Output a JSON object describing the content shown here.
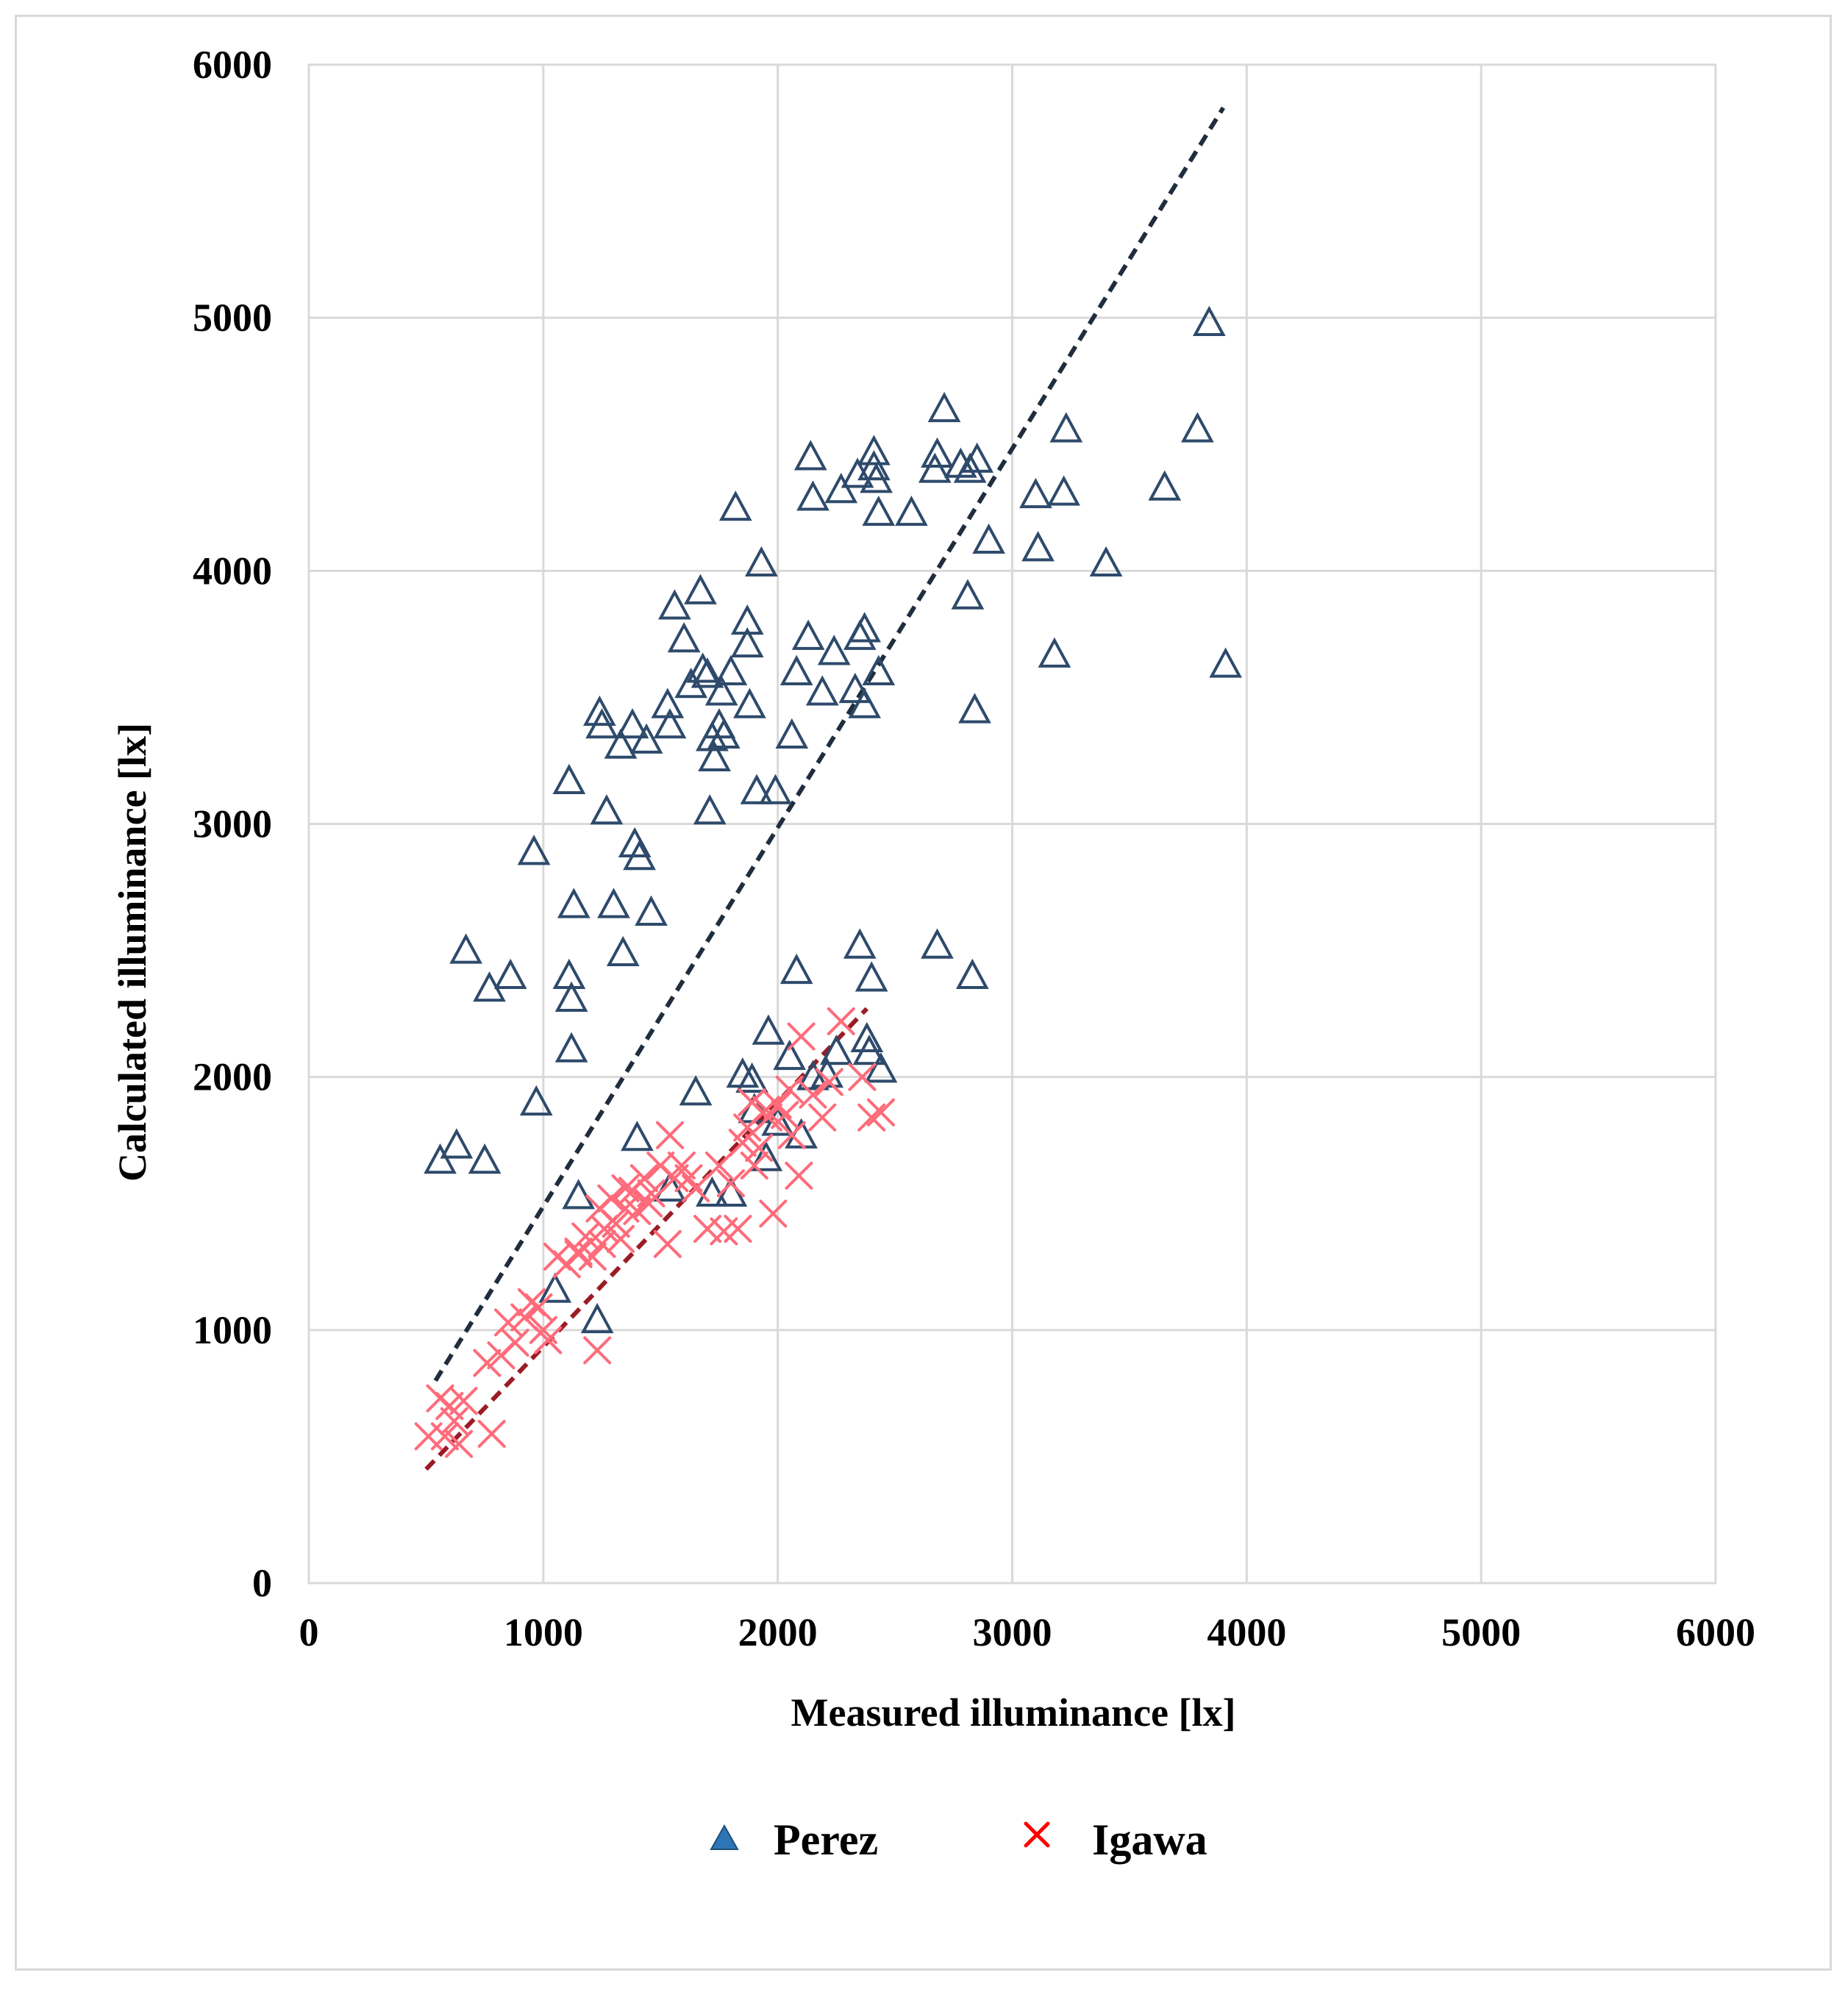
{
  "chart_data": {
    "type": "scatter",
    "title": "",
    "xlabel": "Measured illuminance  [lx]",
    "ylabel": "Calculated illuminance  [lx]",
    "xlim": [
      0,
      6000
    ],
    "ylim": [
      0,
      6000
    ],
    "xticks": [
      "0",
      "1000",
      "2000",
      "3000",
      "4000",
      "5000",
      "6000"
    ],
    "yticks": [
      "0",
      "1000",
      "2000",
      "3000",
      "4000",
      "5000",
      "6000"
    ],
    "grid": true,
    "legend_position": "bottom",
    "series": [
      {
        "name": "Perez",
        "marker": "triangle-open",
        "color": "#2e4a6b",
        "legend_color": "#2e75b6",
        "points": [
          [
            560,
            1670
          ],
          [
            630,
            1730
          ],
          [
            670,
            2500
          ],
          [
            750,
            1670
          ],
          [
            770,
            2350
          ],
          [
            860,
            2400
          ],
          [
            970,
            1900
          ],
          [
            960,
            2890
          ],
          [
            1050,
            1160
          ],
          [
            1110,
            3170
          ],
          [
            1110,
            2400
          ],
          [
            1120,
            2110
          ],
          [
            1120,
            2310
          ],
          [
            1130,
            2680
          ],
          [
            1150,
            1530
          ],
          [
            1230,
            1040
          ],
          [
            1240,
            3440
          ],
          [
            1250,
            3390
          ],
          [
            1270,
            3050
          ],
          [
            1300,
            2680
          ],
          [
            1330,
            3310
          ],
          [
            1340,
            2490
          ],
          [
            1380,
            3390
          ],
          [
            1390,
            2920
          ],
          [
            1410,
            2870
          ],
          [
            1400,
            1760
          ],
          [
            1440,
            3330
          ],
          [
            1460,
            2650
          ],
          [
            1530,
            3470
          ],
          [
            1540,
            3390
          ],
          [
            1560,
            3860
          ],
          [
            1540,
            1560
          ],
          [
            1600,
            3730
          ],
          [
            1630,
            3550
          ],
          [
            1650,
            1940
          ],
          [
            1670,
            3920
          ],
          [
            1680,
            3610
          ],
          [
            1700,
            3590
          ],
          [
            1710,
            3050
          ],
          [
            1720,
            3340
          ],
          [
            1730,
            3260
          ],
          [
            1750,
            3390
          ],
          [
            1760,
            3520
          ],
          [
            1770,
            3350
          ],
          [
            1800,
            3600
          ],
          [
            1820,
            4250
          ],
          [
            1850,
            2010
          ],
          [
            1870,
            3800
          ],
          [
            1870,
            3710
          ],
          [
            1880,
            3470
          ],
          [
            1890,
            1990
          ],
          [
            1910,
            3130
          ],
          [
            1930,
            4030
          ],
          [
            1960,
            2180
          ],
          [
            1990,
            3130
          ],
          [
            2060,
            3350
          ],
          [
            2080,
            2420
          ],
          [
            2080,
            3600
          ],
          [
            2130,
            3740
          ],
          [
            2140,
            4450
          ],
          [
            2150,
            4290
          ],
          [
            2190,
            3520
          ],
          [
            2210,
            2010
          ],
          [
            2240,
            3680
          ],
          [
            2270,
            4320
          ],
          [
            2330,
            3530
          ],
          [
            2340,
            4380
          ],
          [
            2350,
            3740
          ],
          [
            2350,
            2520
          ],
          [
            2370,
            3770
          ],
          [
            2370,
            3470
          ],
          [
            2380,
            2150
          ],
          [
            2390,
            2100
          ],
          [
            2400,
            2390
          ],
          [
            2410,
            4410
          ],
          [
            2410,
            4470
          ],
          [
            2420,
            4360
          ],
          [
            2430,
            3600
          ],
          [
            2430,
            4230
          ],
          [
            2440,
            2030
          ],
          [
            2570,
            4230
          ],
          [
            2670,
            4400
          ],
          [
            2680,
            4460
          ],
          [
            2680,
            2520
          ],
          [
            2710,
            4640
          ],
          [
            2780,
            4420
          ],
          [
            2810,
            3900
          ],
          [
            2820,
            4400
          ],
          [
            2830,
            2400
          ],
          [
            2840,
            3450
          ],
          [
            2850,
            4440
          ],
          [
            2900,
            4120
          ],
          [
            3100,
            4300
          ],
          [
            3110,
            4090
          ],
          [
            3180,
            3670
          ],
          [
            3220,
            4310
          ],
          [
            3230,
            4560
          ],
          [
            3400,
            4030
          ],
          [
            3650,
            4330
          ],
          [
            3790,
            4560
          ],
          [
            3840,
            4980
          ],
          [
            3910,
            3630
          ],
          [
            2000,
            1820
          ],
          [
            1950,
            1680
          ],
          [
            1720,
            1540
          ],
          [
            1800,
            1540
          ],
          [
            1900,
            1870
          ],
          [
            2050,
            2080
          ],
          [
            2150,
            2000
          ],
          [
            2250,
            2100
          ],
          [
            2100,
            1770
          ]
        ]
      },
      {
        "name": "Igawa",
        "marker": "x",
        "color": "#ff6b7a",
        "legend_color": "#ff0000",
        "points": [
          [
            510,
            580
          ],
          [
            560,
            730
          ],
          [
            580,
            580
          ],
          [
            600,
            700
          ],
          [
            620,
            640
          ],
          [
            640,
            550
          ],
          [
            660,
            720
          ],
          [
            760,
            870
          ],
          [
            780,
            590
          ],
          [
            820,
            900
          ],
          [
            850,
            1030
          ],
          [
            880,
            950
          ],
          [
            920,
            1050
          ],
          [
            950,
            1110
          ],
          [
            980,
            1090
          ],
          [
            1000,
            1000
          ],
          [
            1020,
            960
          ],
          [
            1060,
            1290
          ],
          [
            1100,
            1260
          ],
          [
            1150,
            1310
          ],
          [
            1180,
            1370
          ],
          [
            1210,
            1290
          ],
          [
            1230,
            920
          ],
          [
            1240,
            1480
          ],
          [
            1260,
            1400
          ],
          [
            1290,
            1520
          ],
          [
            1310,
            1420
          ],
          [
            1330,
            1360
          ],
          [
            1350,
            1480
          ],
          [
            1380,
            1550
          ],
          [
            1400,
            1470
          ],
          [
            1430,
            1600
          ],
          [
            1460,
            1540
          ],
          [
            1500,
            1650
          ],
          [
            1530,
            1340
          ],
          [
            1540,
            1770
          ],
          [
            1560,
            1600
          ],
          [
            1590,
            1650
          ],
          [
            1620,
            1600
          ],
          [
            1700,
            1400
          ],
          [
            1770,
            1390
          ],
          [
            1800,
            1580
          ],
          [
            1830,
            1400
          ],
          [
            1850,
            1740
          ],
          [
            1870,
            1800
          ],
          [
            1890,
            1900
          ],
          [
            1920,
            1720
          ],
          [
            1950,
            1870
          ],
          [
            1960,
            1840
          ],
          [
            1980,
            1460
          ],
          [
            2000,
            1890
          ],
          [
            2030,
            1850
          ],
          [
            2060,
            1770
          ],
          [
            2090,
            1610
          ],
          [
            2100,
            2160
          ],
          [
            2150,
            1930
          ],
          [
            2190,
            1840
          ],
          [
            2220,
            1980
          ],
          [
            2270,
            2220
          ],
          [
            2360,
            2000
          ],
          [
            2400,
            1840
          ],
          [
            2440,
            1860
          ],
          [
            1650,
            1560
          ],
          [
            1750,
            1650
          ],
          [
            1450,
            1500
          ],
          [
            1350,
            1560
          ],
          [
            1250,
            1340
          ],
          [
            1900,
            1650
          ],
          [
            2050,
            1950
          ],
          [
            1150,
            1300
          ]
        ]
      }
    ],
    "trendlines": [
      {
        "series": "Perez",
        "style": "dashed",
        "color": "#1f2d3d",
        "from": [
          540,
          800
        ],
        "to": [
          3900,
          5830
        ]
      },
      {
        "series": "Igawa",
        "style": "dashed",
        "color": "#9b1c24",
        "from": [
          500,
          450
        ],
        "to": [
          2380,
          2270
        ]
      }
    ]
  }
}
